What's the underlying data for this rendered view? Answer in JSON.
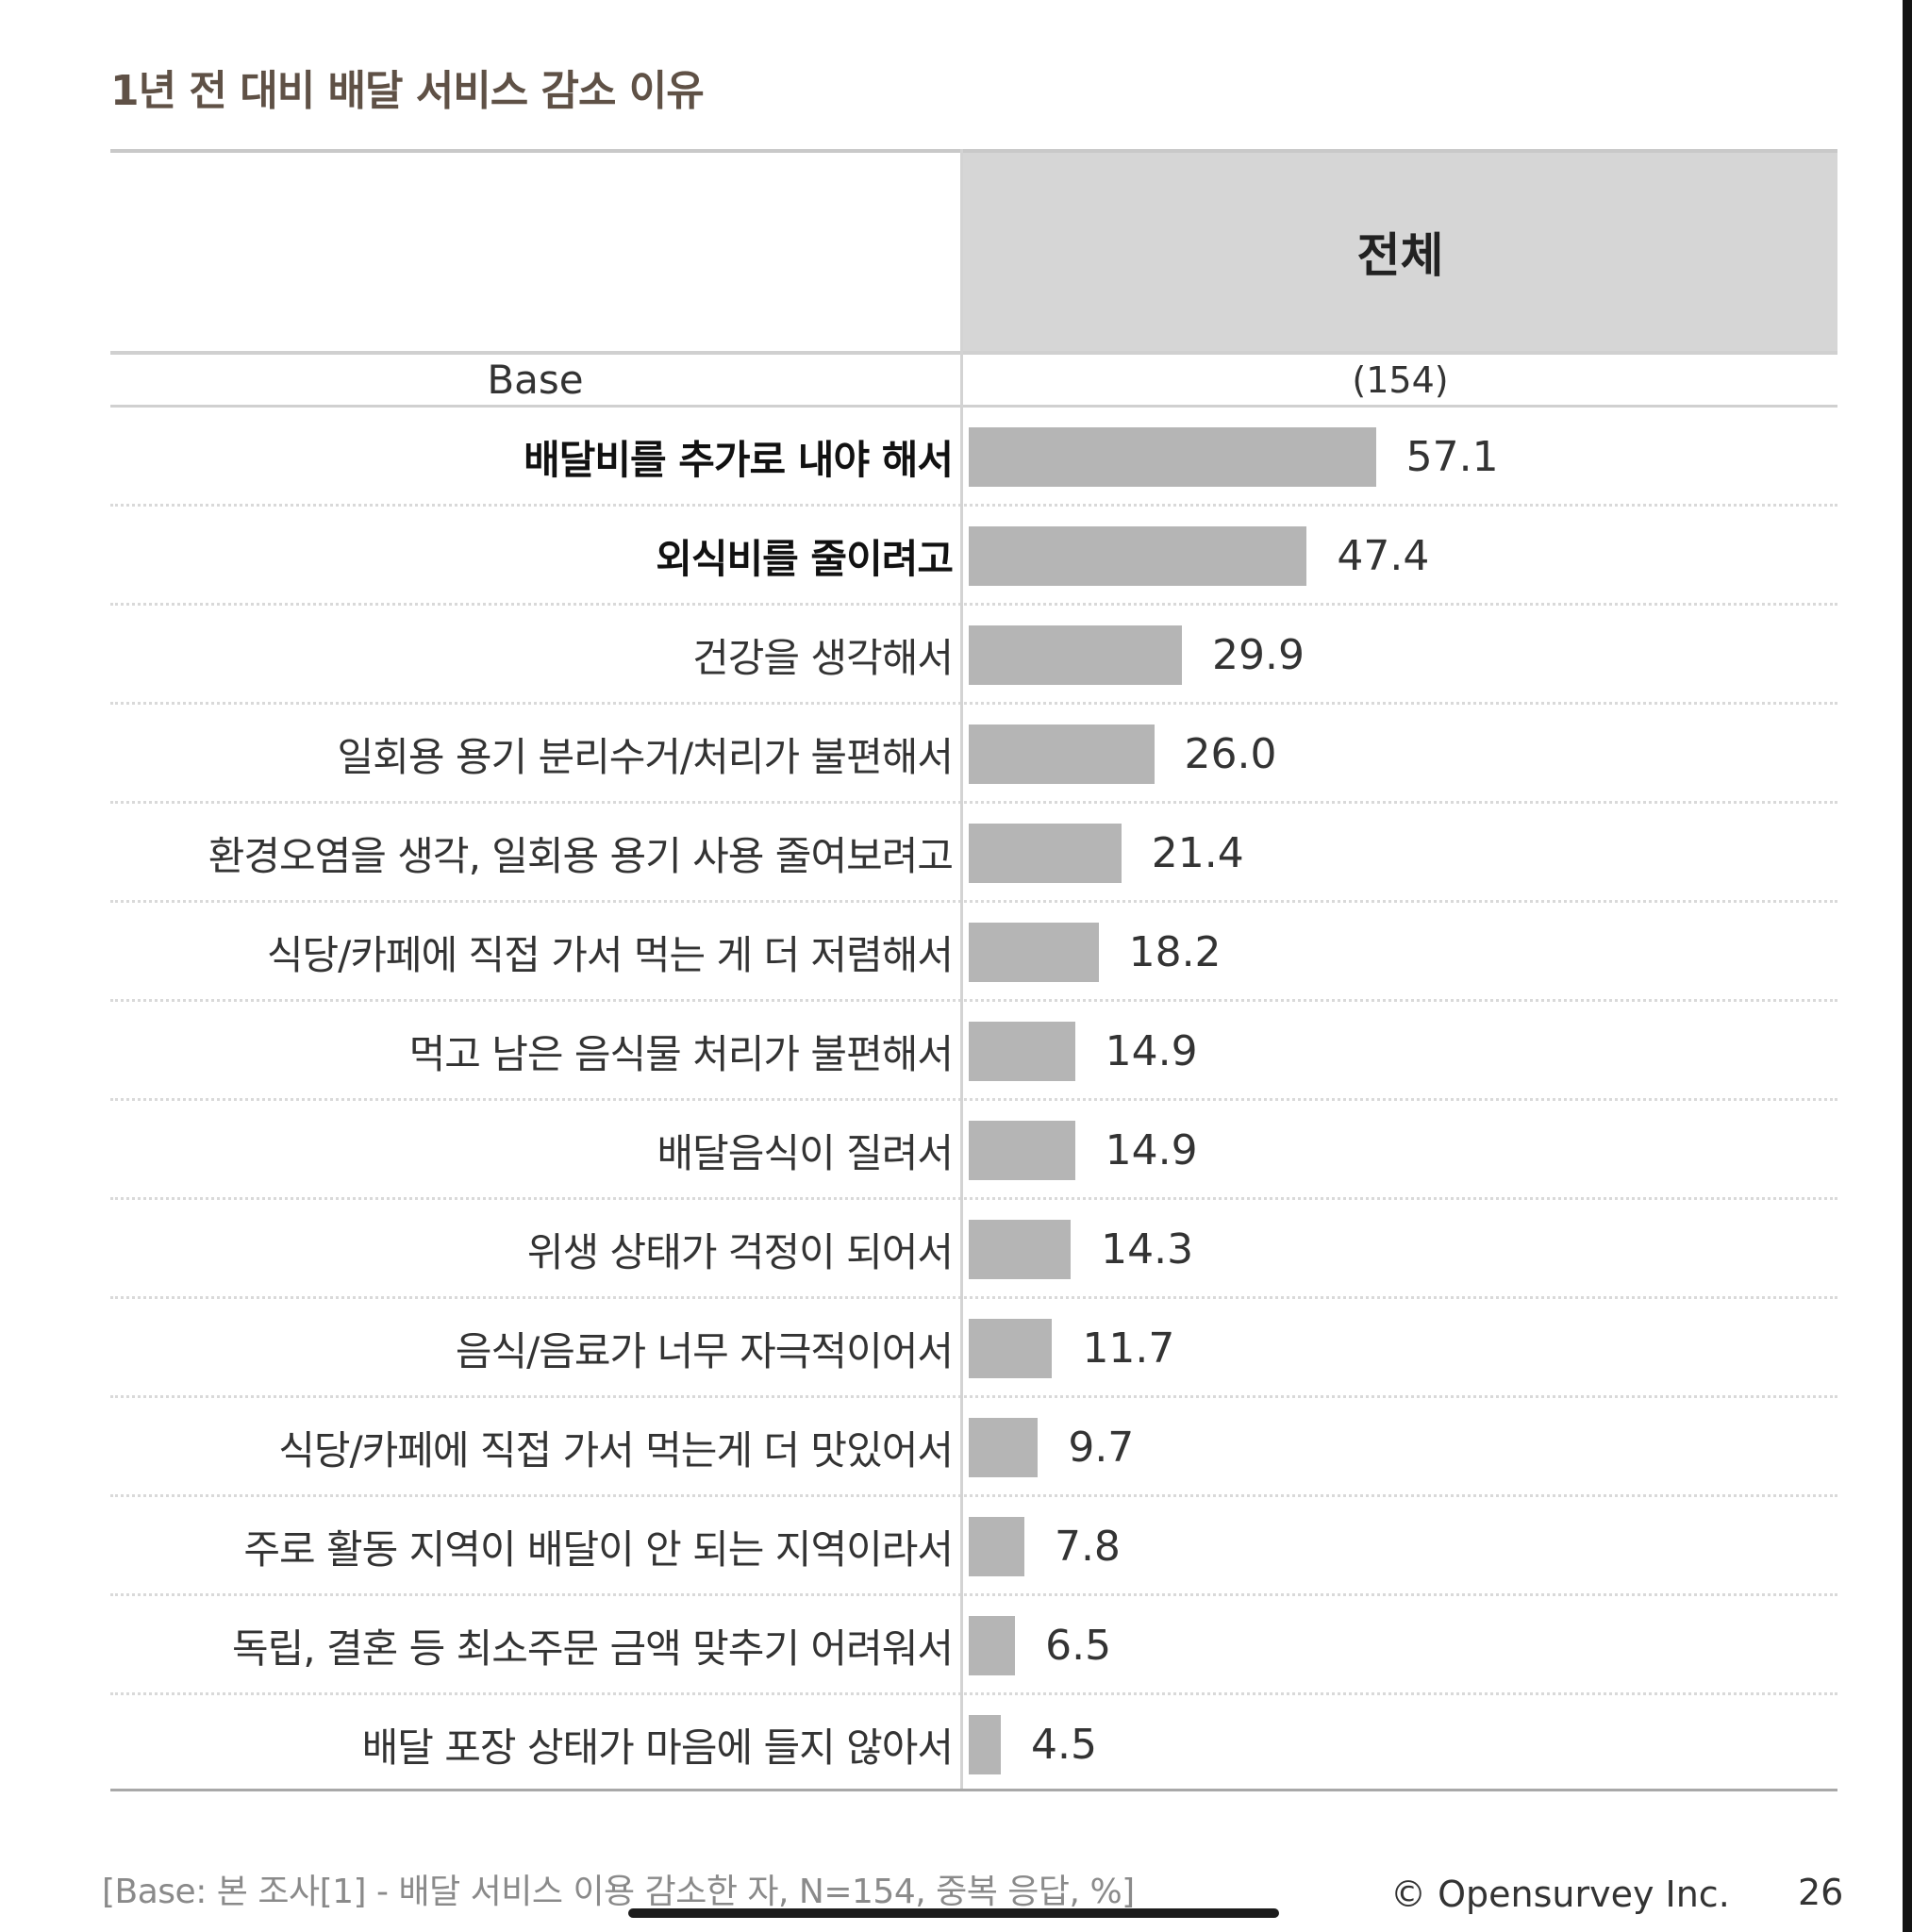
{
  "title": "1년 전 대비 배달 서비스 감소 이유",
  "table": {
    "column_header": "전체",
    "base_label": "Base",
    "base_value": "(154)"
  },
  "chart_data": {
    "type": "bar",
    "orientation": "horizontal",
    "title": "1년 전 대비 배달 서비스 감소 이유",
    "series": [
      {
        "name": "전체"
      }
    ],
    "categories": [
      "배달비를 추가로 내야 해서",
      "외식비를 줄이려고",
      "건강을 생각해서",
      "일회용 용기 분리수거/처리가 불편해서",
      "환경오염을 생각, 일회용 용기 사용 줄여보려고",
      "식당/카페에 직접 가서 먹는 게 더 저렴해서",
      "먹고 남은 음식물 처리가 불편해서",
      "배달음식이 질려서",
      "위생 상태가 걱정이 되어서",
      "음식/음료가 너무 자극적이어서",
      "식당/카페에 직접 가서 먹는게 더 맛있어서",
      "주로 활동 지역이 배달이 안 되는 지역이라서",
      "독립, 결혼 등 최소주문 금액 맞추기 어려워서",
      "배달 포장 상태가 마음에 들지 않아서"
    ],
    "values": [
      57.1,
      47.4,
      29.9,
      26.0,
      21.4,
      18.2,
      14.9,
      14.9,
      14.3,
      11.7,
      9.7,
      7.8,
      6.5,
      4.5
    ],
    "labels": [
      "57.1",
      "47.4",
      "29.9",
      "26.0",
      "21.4",
      "18.2",
      "14.9",
      "14.9",
      "14.3",
      "11.7",
      "9.7",
      "7.8",
      "6.5",
      "4.5"
    ],
    "emphasized": [
      true,
      true,
      false,
      false,
      false,
      false,
      false,
      false,
      false,
      false,
      false,
      false,
      false,
      false
    ],
    "bar_color": "#b5b5b5",
    "xlim": [
      0,
      100
    ],
    "grid": false
  },
  "footnote": "[Base: 본 조사[1] - 배달 서비스 이용 감소한 자, N=154, 중복 응답, %]",
  "copyright": "© Opensurvey Inc.",
  "page_number": "26"
}
